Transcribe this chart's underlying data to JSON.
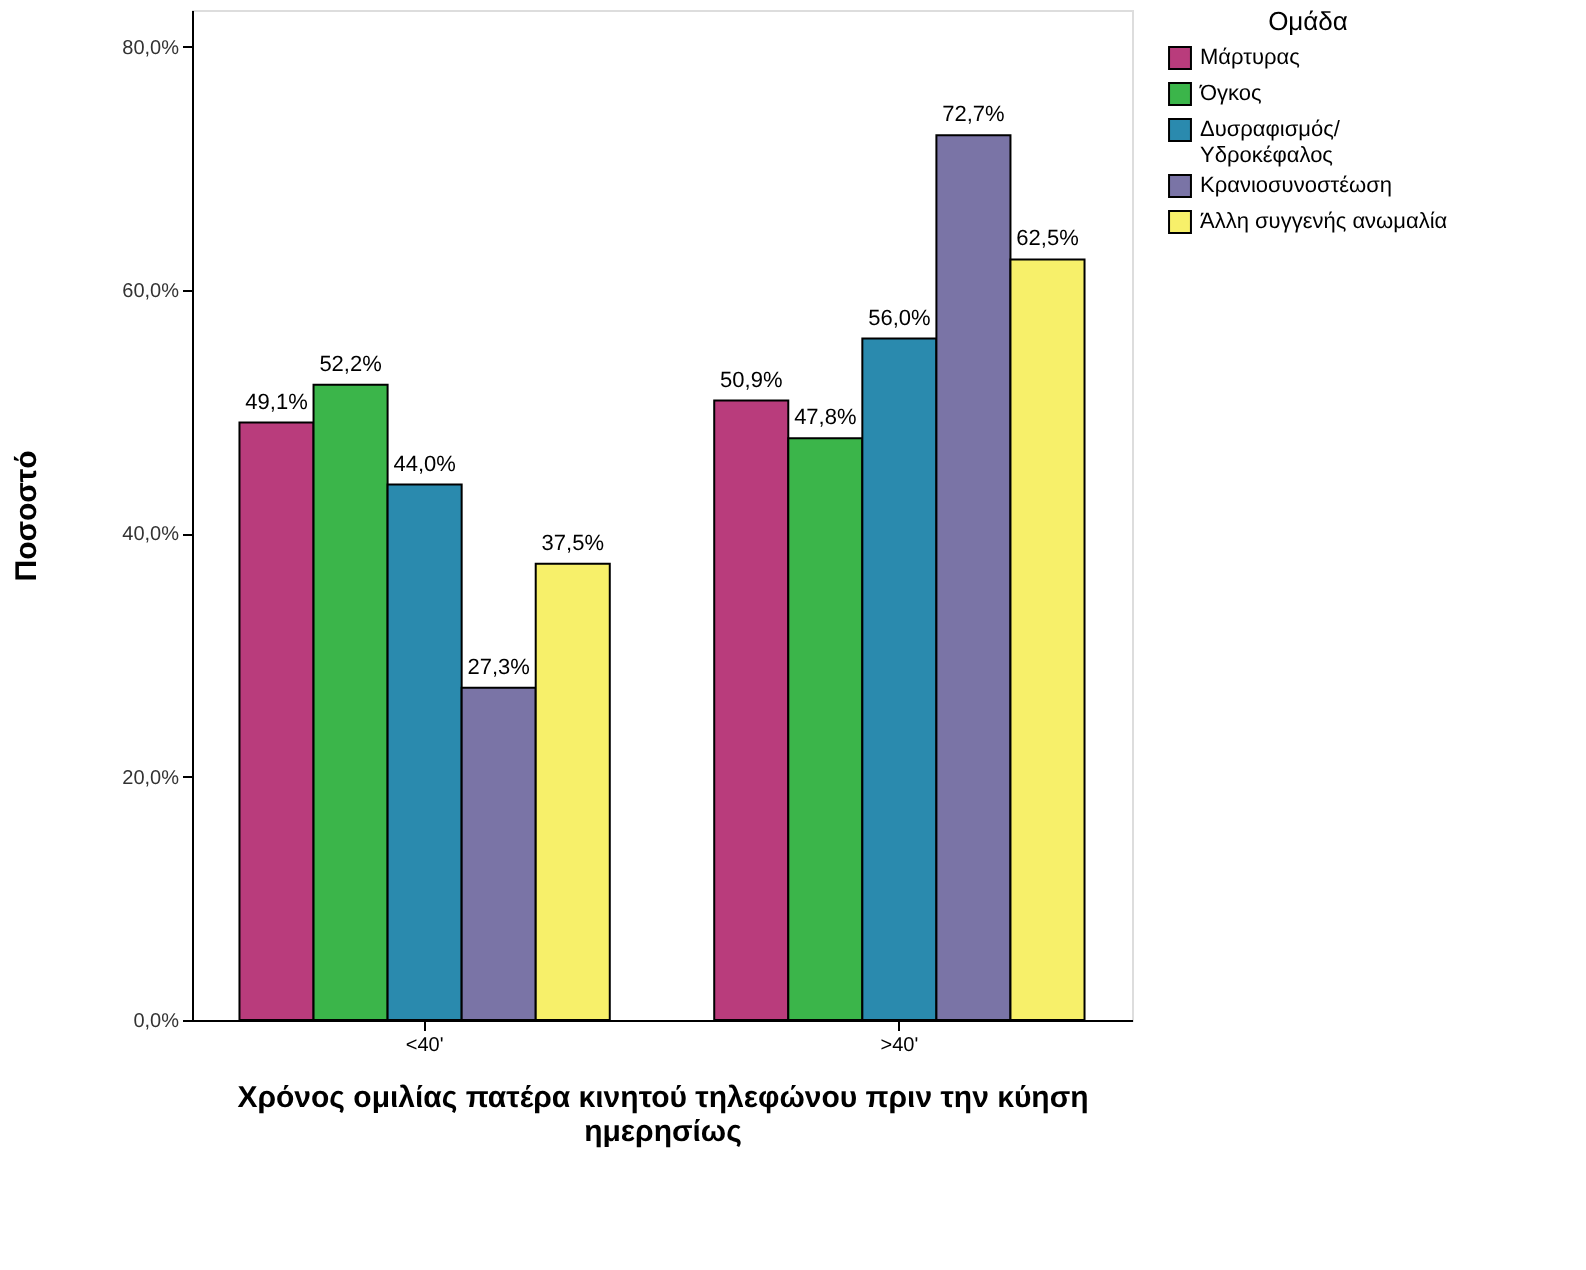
{
  "chart_data": {
    "type": "bar",
    "xlabel": "Χρόνος ομιλίας πατέρα κινητού τηλεφώνου πριν την κύηση ημερησίως",
    "ylabel": "Ποσοστό",
    "legend_title": "Ομάδα",
    "categories": [
      "<40'",
      ">40'"
    ],
    "series": [
      {
        "name": "Μάρτυρας",
        "color": "#b93c7c",
        "values": [
          49.1,
          50.9
        ],
        "value_labels": [
          "49,1%",
          "50,9%"
        ]
      },
      {
        "name": "Όγκος",
        "color": "#3bb54a",
        "values": [
          52.2,
          47.8
        ],
        "value_labels": [
          "52,2%",
          "47,8%"
        ]
      },
      {
        "name": "Δυσραφισμός/\nΥδροκέφαλος",
        "color": "#2a8aae",
        "values": [
          44.0,
          56.0
        ],
        "value_labels": [
          "44,0%",
          "56,0%"
        ]
      },
      {
        "name": "Κρανιοσυνοστέωση",
        "color": "#7a74a6",
        "values": [
          27.3,
          72.7
        ],
        "value_labels": [
          "27,3%",
          "72,7%"
        ]
      },
      {
        "name": "Άλλη συγγενής ανωμαλία",
        "color": "#f7f06a",
        "values": [
          37.5,
          62.5
        ],
        "value_labels": [
          "37,5%",
          "62,5%"
        ]
      }
    ],
    "ylim": [
      0,
      83
    ],
    "yticks": [
      {
        "value": 0,
        "label": "0,0%"
      },
      {
        "value": 20,
        "label": "20,0%"
      },
      {
        "value": 40,
        "label": "40,0%"
      },
      {
        "value": 60,
        "label": "60,0%"
      },
      {
        "value": 80,
        "label": "80,0%"
      }
    ],
    "grid": false,
    "legend": "top right"
  }
}
